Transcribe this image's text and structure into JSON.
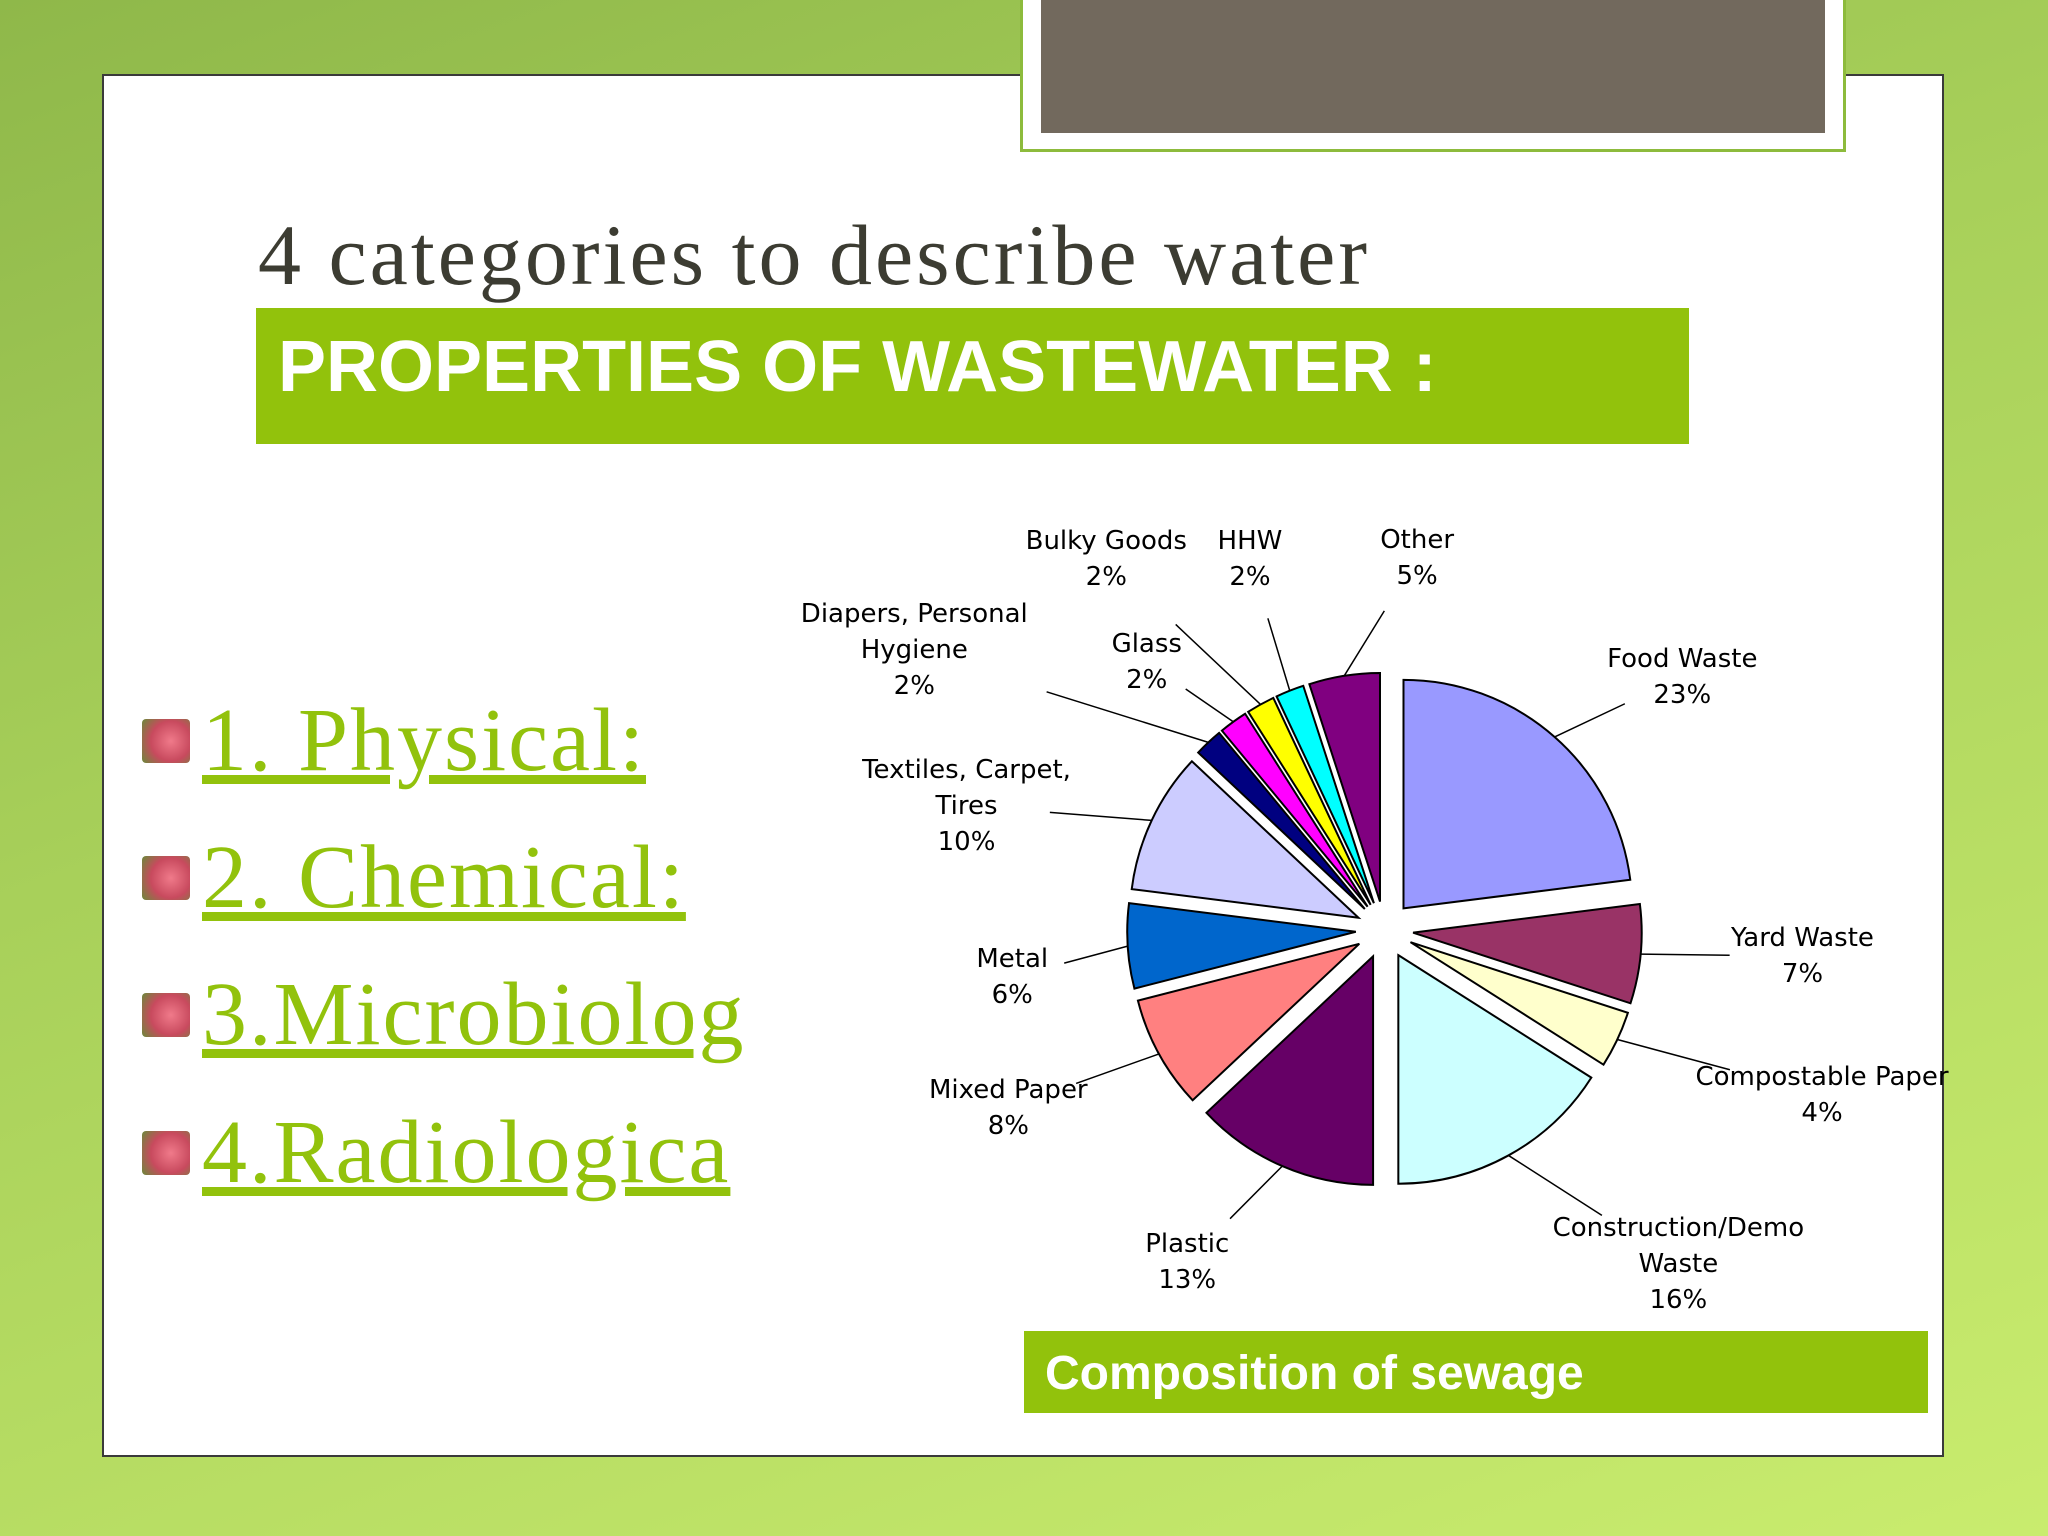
{
  "title": "4 categories to describe water",
  "banner": "PROPERTIES OF WASTEWATER :",
  "list": [
    "1. Physical:",
    "2. Chemical:",
    "3.Microbiolog",
    "4.Radiologica"
  ],
  "chart_data": {
    "type": "pie",
    "categories": [
      "Food Waste",
      "Yard Waste",
      "Compostable Paper",
      "Construction/Demo Waste",
      "Plastic",
      "Mixed Paper",
      "Metal",
      "Textiles, Carpet, Tires",
      "Diapers, Personal Hygiene",
      "Glass",
      "Bulky Goods",
      "HHW",
      "Other"
    ],
    "values": [
      23,
      7,
      4,
      16,
      13,
      8,
      6,
      10,
      2,
      2,
      2,
      2,
      5
    ],
    "value_labels": [
      "23%",
      "7%",
      "4%",
      "16%",
      "13%",
      "8%",
      "6%",
      "10%",
      "2%",
      "2%",
      "2%",
      "2%",
      "5%"
    ],
    "colors": [
      "#9999ff",
      "#993366",
      "#ffffcc",
      "#ccffff",
      "#660066",
      "#ff8080",
      "#0066cc",
      "#ccccff",
      "#000080",
      "#ff00ff",
      "#ffff00",
      "#00ffff",
      "#800080"
    ],
    "caption": "Composition of sewage"
  }
}
